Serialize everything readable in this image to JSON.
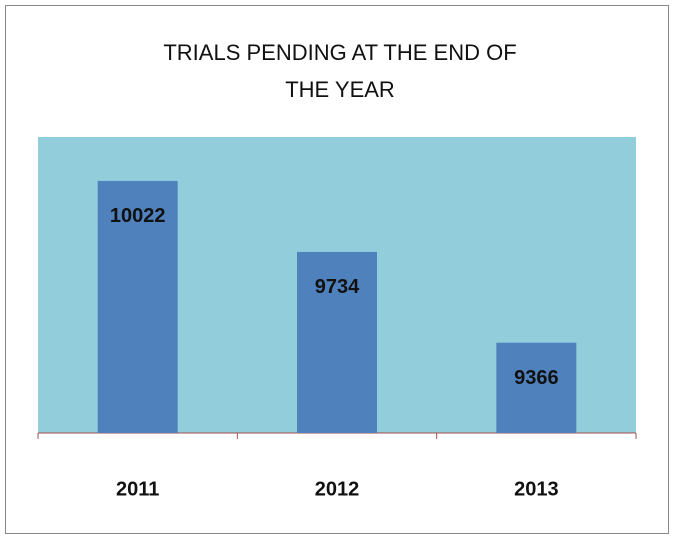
{
  "chart_data": {
    "type": "bar",
    "title": "TRIALS PENDING AT THE END OF THE YEAR",
    "categories": [
      "2011",
      "2012",
      "2013"
    ],
    "values": [
      10022,
      9734,
      9366
    ],
    "color": "#4f81bd",
    "plot_background": "#92cddc",
    "ylim": [
      9000,
      10200
    ]
  }
}
